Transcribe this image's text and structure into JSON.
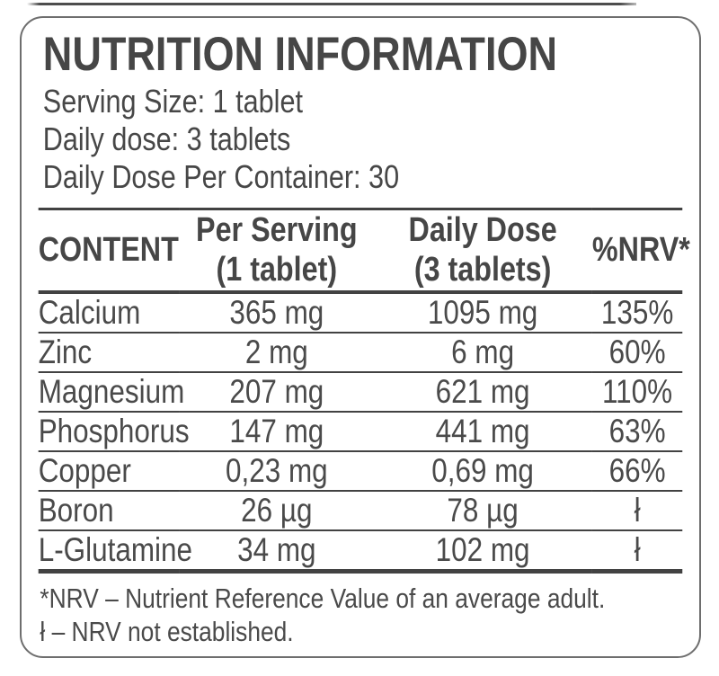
{
  "header": {
    "title": "NUTRITION INFORMATION"
  },
  "info": {
    "serving_size": "Serving Size: 1 tablet",
    "daily_dose": "Daily dose: 3 tablets",
    "doses_per_container": "Daily Dose Per Container: 30"
  },
  "table": {
    "columns": [
      {
        "line1": "CONTENT",
        "line2": ""
      },
      {
        "line1": "Per Serving",
        "line2": "(1 tablet)"
      },
      {
        "line1": "Daily Dose",
        "line2": "(3 tablets)"
      },
      {
        "line1": "%NRV*",
        "line2": ""
      }
    ],
    "rows": [
      {
        "content": "Calcium",
        "per_serving": "365 mg",
        "daily_dose": "1095 mg",
        "nrv": "135%"
      },
      {
        "content": "Zinc",
        "per_serving": "2 mg",
        "daily_dose": "6 mg",
        "nrv": "60%"
      },
      {
        "content": "Magnesium",
        "per_serving": "207 mg",
        "daily_dose": "621 mg",
        "nrv": "110%"
      },
      {
        "content": "Phosphorus",
        "per_serving": "147 mg",
        "daily_dose": "441 mg",
        "nrv": "63%"
      },
      {
        "content": "Copper",
        "per_serving": "0,23 mg",
        "daily_dose": "0,69 mg",
        "nrv": "66%"
      },
      {
        "content": "Boron",
        "per_serving": "26 µg",
        "daily_dose": "78 µg",
        "nrv": "ł"
      },
      {
        "content": "L-Glutamine",
        "per_serving": "34 mg",
        "daily_dose": "102 mg",
        "nrv": "ł"
      }
    ]
  },
  "footnotes": {
    "nrv_definition": "*NRV – Nutrient Reference Value of an average adult.",
    "not_established": "ł – NRV not established."
  },
  "colors": {
    "text": "#4a4a4a",
    "rule_line": "#424242",
    "box_border": "#6e6e6e"
  }
}
